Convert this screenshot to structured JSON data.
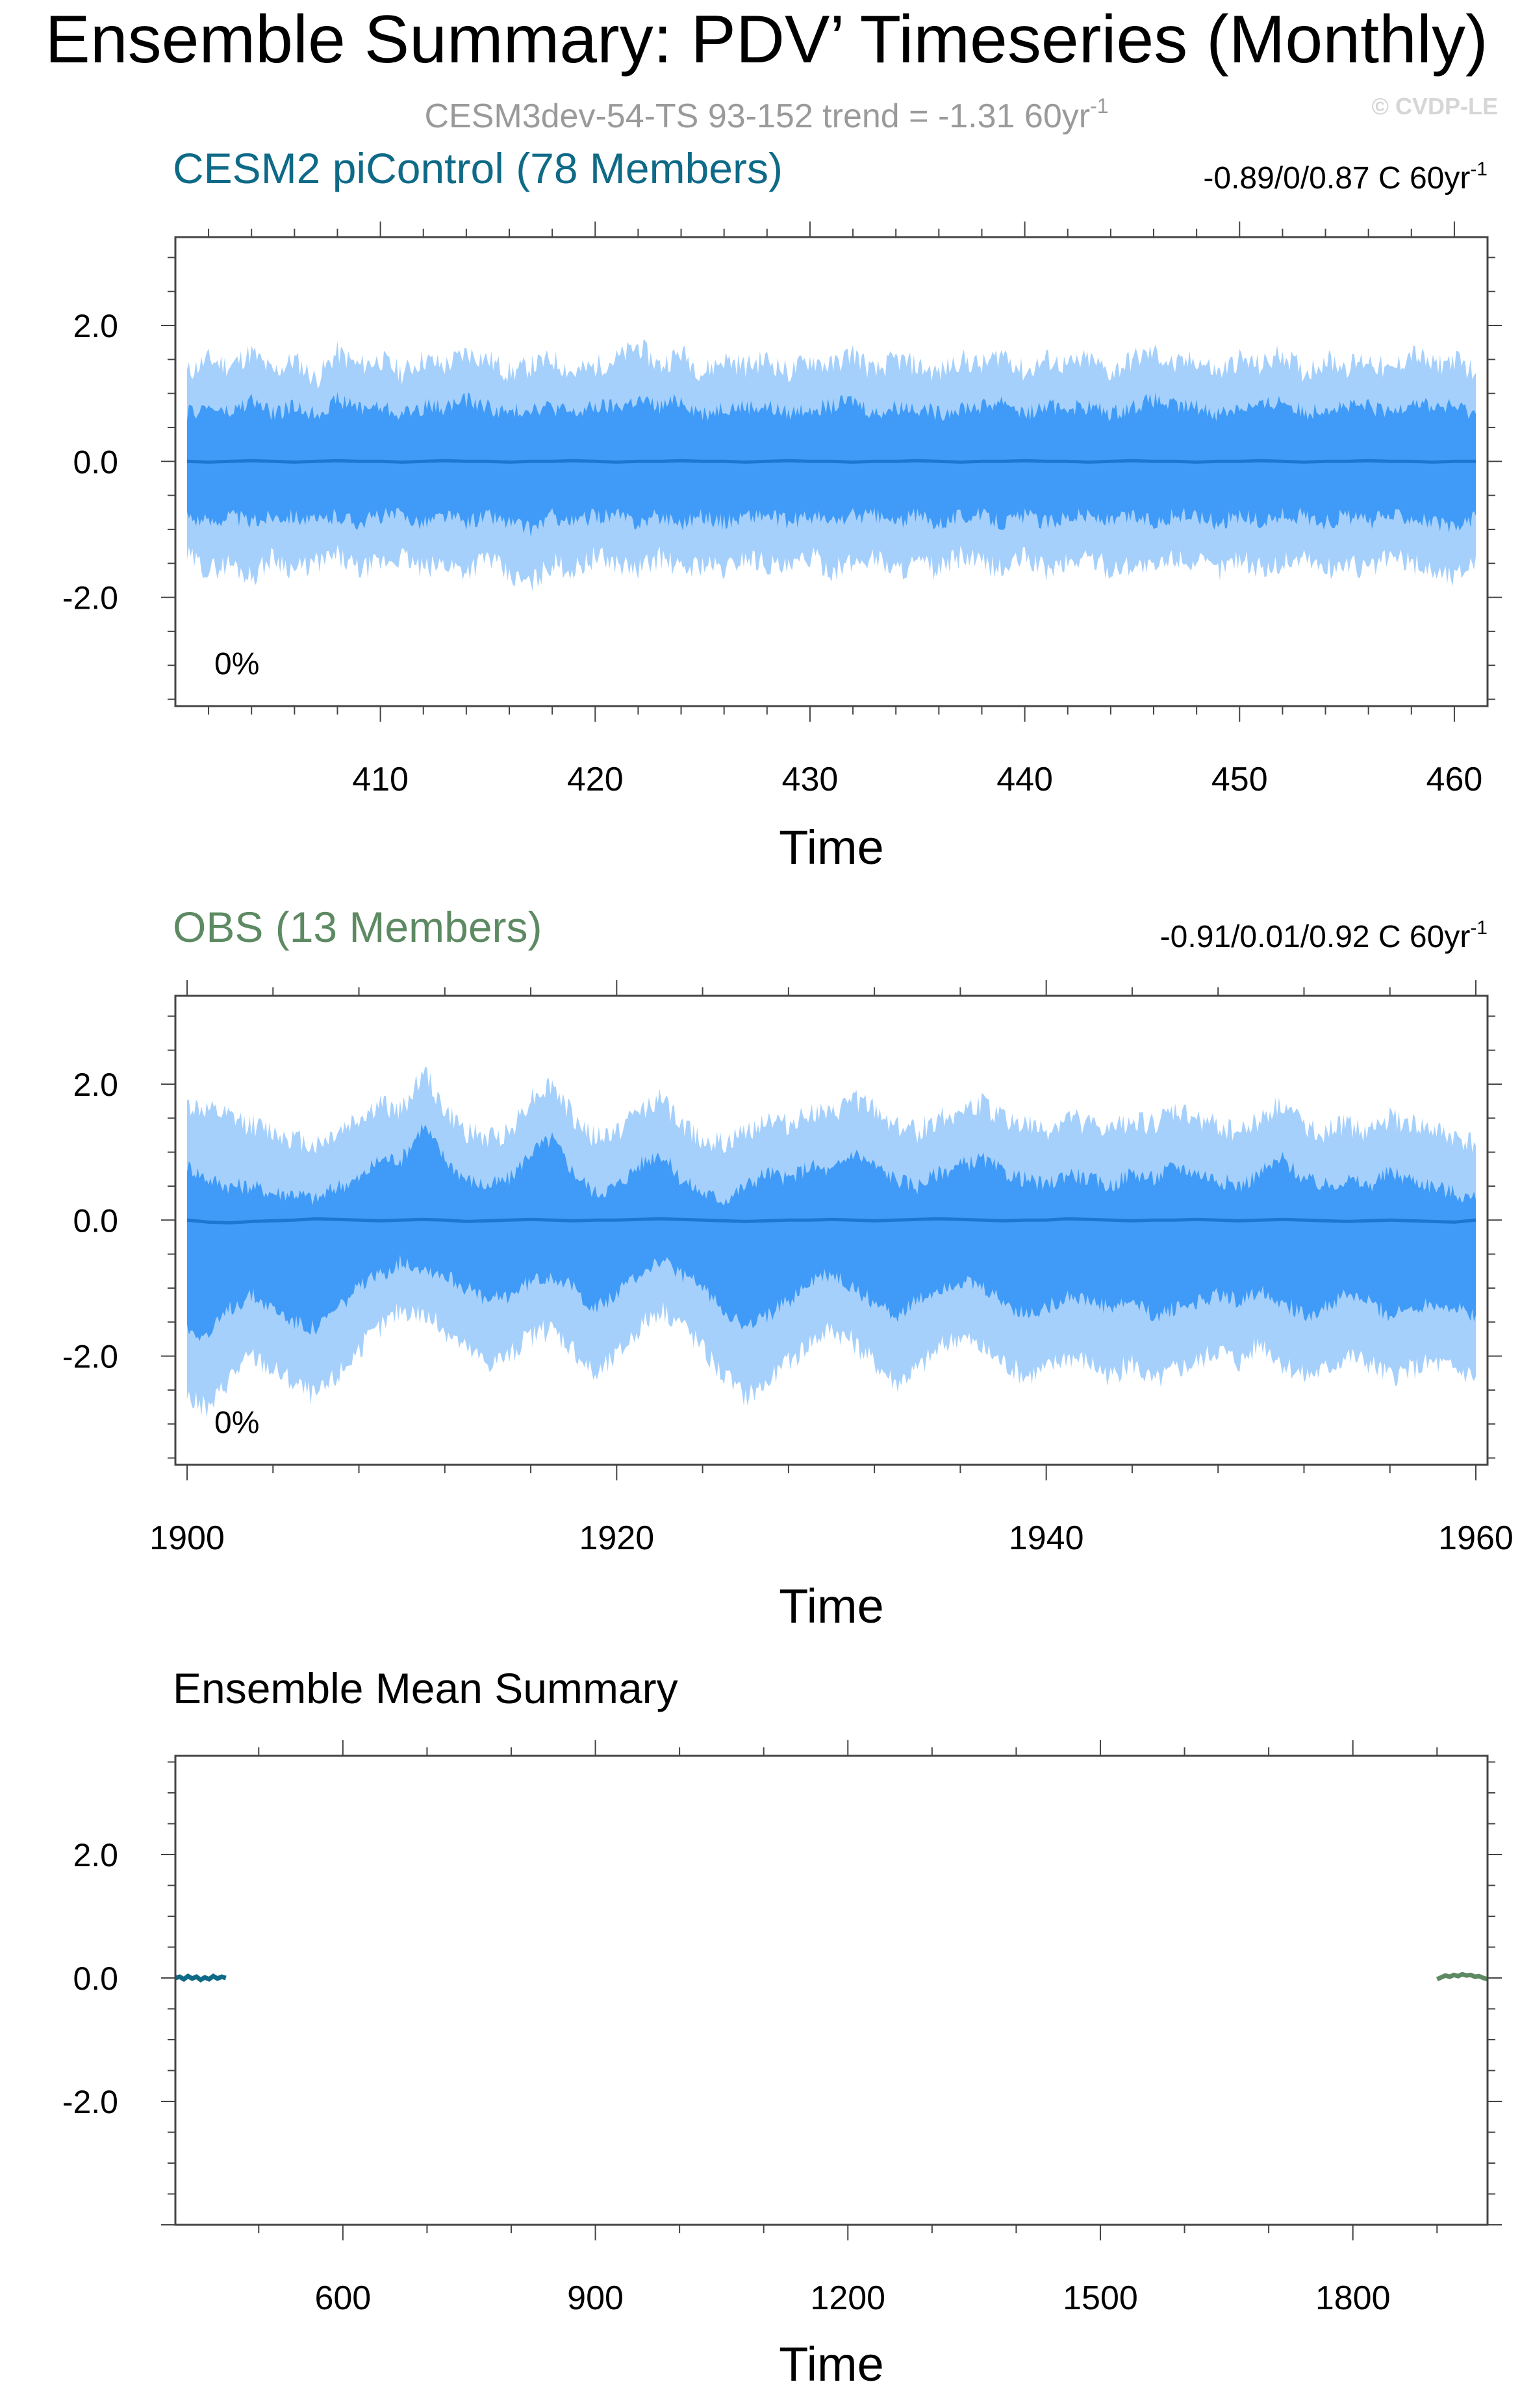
{
  "figure": {
    "title": "Ensemble Summary: PDV’ Timeseries (Monthly)",
    "subtitle": "CESM3dev-54-TS 93-152 trend = -1.31 60yr",
    "subtitle_sup": "-1",
    "watermark": "© CVDP-LE"
  },
  "colors": {
    "band_outer": "#a6d0fc",
    "band_inner": "#3f9bf7",
    "mean_line": "#1a78d2",
    "title_picontrol": "#0e6a87",
    "title_obs": "#5d8a62",
    "subtitle": "#9a9a9a",
    "watermark": "#d6d6d6"
  },
  "chart_data": [
    {
      "type": "area",
      "title": "CESM2 piControl (78 Members)",
      "stats": "-0.89/0/0.87 C 60yr",
      "stats_sup": "-1",
      "percent_label": "0%",
      "xlabel": "Time",
      "ylabel": "",
      "xlim": [
        401,
        461
      ],
      "ylim": [
        -3.6,
        3.3
      ],
      "xticks": [
        410,
        420,
        430,
        440,
        450,
        460
      ],
      "xtick_labels": [
        "410",
        "420",
        "430",
        "440",
        "450",
        "460"
      ],
      "yticks": [
        2.0,
        0.0,
        -2.0
      ],
      "ytick_labels": [
        "2.0",
        "0.0",
        "-2.0"
      ],
      "series": {
        "x": [
          401,
          402,
          403,
          404,
          405,
          406,
          407,
          408,
          409,
          410,
          411,
          412,
          413,
          414,
          415,
          416,
          417,
          418,
          419,
          420,
          421,
          422,
          423,
          424,
          425,
          426,
          427,
          428,
          429,
          430,
          431,
          432,
          433,
          434,
          435,
          436,
          437,
          438,
          439,
          440,
          441,
          442,
          443,
          444,
          445,
          446,
          447,
          448,
          449,
          450,
          451,
          452,
          453,
          454,
          455,
          456,
          457,
          458,
          459,
          460,
          461
        ],
        "outer_upper": [
          1.3,
          1.5,
          1.4,
          1.6,
          1.3,
          1.5,
          1.2,
          1.6,
          1.4,
          1.5,
          1.3,
          1.5,
          1.4,
          1.6,
          1.5,
          1.3,
          1.4,
          1.5,
          1.3,
          1.4,
          1.5,
          1.7,
          1.4,
          1.6,
          1.3,
          1.5,
          1.4,
          1.5,
          1.3,
          1.5,
          1.4,
          1.6,
          1.3,
          1.5,
          1.4,
          1.3,
          1.5,
          1.4,
          1.6,
          1.3,
          1.5,
          1.4,
          1.5,
          1.3,
          1.5,
          1.6,
          1.4,
          1.5,
          1.3,
          1.5,
          1.4,
          1.6,
          1.3,
          1.5,
          1.4,
          1.5,
          1.3,
          1.6,
          1.4,
          1.5,
          1.3
        ],
        "inner_upper": [
          0.7,
          0.8,
          0.7,
          0.9,
          0.7,
          0.8,
          0.7,
          0.9,
          0.8,
          0.8,
          0.7,
          0.8,
          0.8,
          0.9,
          0.8,
          0.7,
          0.8,
          0.8,
          0.7,
          0.8,
          0.8,
          0.9,
          0.8,
          0.9,
          0.7,
          0.8,
          0.8,
          0.8,
          0.7,
          0.8,
          0.8,
          0.9,
          0.7,
          0.8,
          0.8,
          0.7,
          0.8,
          0.8,
          0.9,
          0.7,
          0.8,
          0.8,
          0.8,
          0.7,
          0.8,
          0.9,
          0.8,
          0.8,
          0.7,
          0.8,
          0.8,
          0.9,
          0.7,
          0.8,
          0.8,
          0.8,
          0.7,
          0.9,
          0.8,
          0.8,
          0.7
        ],
        "mean": [
          0.0,
          -0.01,
          0.0,
          0.01,
          0.0,
          -0.01,
          0.0,
          0.01,
          0.0,
          0.0,
          -0.01,
          0.0,
          0.01,
          0.0,
          0.0,
          -0.01,
          0.0,
          0.0,
          0.01,
          0.0,
          -0.01,
          0.0,
          0.0,
          0.01,
          0.0,
          0.0,
          -0.01,
          0.0,
          0.01,
          0.0,
          0.0,
          -0.01,
          0.0,
          0.0,
          0.01,
          0.0,
          -0.01,
          0.0,
          0.0,
          0.01,
          0.0,
          0.0,
          -0.01,
          0.0,
          0.01,
          0.0,
          0.0,
          -0.01,
          0.0,
          0.0,
          0.01,
          0.0,
          -0.01,
          0.0,
          0.0,
          0.01,
          0.0,
          0.0,
          -0.01,
          0.0,
          0.0
        ],
        "inner_lower": [
          -0.8,
          -0.9,
          -0.8,
          -0.9,
          -0.8,
          -0.8,
          -0.9,
          -0.8,
          -0.9,
          -0.8,
          -0.8,
          -0.9,
          -0.8,
          -0.9,
          -0.8,
          -0.9,
          -1.0,
          -0.8,
          -0.9,
          -0.8,
          -0.8,
          -0.9,
          -0.8,
          -0.9,
          -0.8,
          -0.9,
          -0.8,
          -0.8,
          -0.9,
          -0.8,
          -0.9,
          -0.8,
          -0.8,
          -0.9,
          -0.8,
          -0.9,
          -0.8,
          -0.8,
          -0.9,
          -0.8,
          -0.9,
          -0.8,
          -0.8,
          -0.9,
          -0.8,
          -0.9,
          -0.8,
          -0.8,
          -0.9,
          -0.8,
          -0.9,
          -0.8,
          -0.8,
          -0.9,
          -0.8,
          -0.9,
          -0.8,
          -0.8,
          -0.9,
          -1.0,
          -0.8
        ],
        "outer_lower": [
          -1.4,
          -1.6,
          -1.5,
          -1.7,
          -1.4,
          -1.6,
          -1.5,
          -1.4,
          -1.6,
          -1.5,
          -1.4,
          -1.6,
          -1.5,
          -1.6,
          -1.4,
          -1.7,
          -1.8,
          -1.5,
          -1.6,
          -1.4,
          -1.5,
          -1.6,
          -1.4,
          -1.6,
          -1.5,
          -1.6,
          -1.4,
          -1.5,
          -1.6,
          -1.4,
          -1.6,
          -1.5,
          -1.4,
          -1.6,
          -1.5,
          -1.6,
          -1.4,
          -1.5,
          -1.6,
          -1.4,
          -1.6,
          -1.5,
          -1.4,
          -1.6,
          -1.5,
          -1.6,
          -1.4,
          -1.5,
          -1.6,
          -1.4,
          -1.6,
          -1.5,
          -1.4,
          -1.6,
          -1.5,
          -1.6,
          -1.4,
          -1.5,
          -1.6,
          -1.7,
          -1.4
        ]
      }
    },
    {
      "type": "area",
      "title": "OBS (13 Members)",
      "stats": "-0.91/0.01/0.92 C 60yr",
      "stats_sup": "-1",
      "percent_label": "0%",
      "xlabel": "Time",
      "ylabel": "",
      "xlim": [
        1900,
        1960
      ],
      "ylim": [
        -3.6,
        3.3
      ],
      "xticks": [
        1900,
        1920,
        1940,
        1960
      ],
      "xtick_labels": [
        "1900",
        "1920",
        "1940",
        "1960"
      ],
      "yticks": [
        2.0,
        0.0,
        -2.0
      ],
      "ytick_labels": [
        "2.0",
        "0.0",
        "-2.0"
      ],
      "series": {
        "x": [
          1900,
          1901,
          1902,
          1903,
          1904,
          1905,
          1906,
          1907,
          1908,
          1909,
          1910,
          1911,
          1912,
          1913,
          1914,
          1915,
          1916,
          1917,
          1918,
          1919,
          1920,
          1921,
          1922,
          1923,
          1924,
          1925,
          1926,
          1927,
          1928,
          1929,
          1930,
          1931,
          1932,
          1933,
          1934,
          1935,
          1936,
          1937,
          1938,
          1939,
          1940,
          1941,
          1942,
          1943,
          1944,
          1945,
          1946,
          1947,
          1948,
          1949,
          1950,
          1951,
          1952,
          1953,
          1954,
          1955,
          1956,
          1957,
          1958,
          1959,
          1960
        ],
        "outer_upper": [
          1.7,
          1.6,
          1.5,
          1.4,
          1.3,
          1.2,
          1.1,
          1.3,
          1.5,
          1.7,
          1.6,
          2.2,
          1.6,
          1.3,
          1.2,
          1.3,
          1.8,
          2.0,
          1.5,
          1.2,
          1.3,
          1.6,
          1.8,
          1.4,
          1.2,
          1.1,
          1.3,
          1.5,
          1.4,
          1.6,
          1.5,
          1.8,
          1.6,
          1.4,
          1.3,
          1.5,
          1.6,
          1.7,
          1.5,
          1.4,
          1.3,
          1.5,
          1.4,
          1.3,
          1.5,
          1.4,
          1.6,
          1.5,
          1.4,
          1.3,
          1.5,
          1.7,
          1.4,
          1.3,
          1.4,
          1.3,
          1.5,
          1.4,
          1.3,
          1.2,
          1.1
        ],
        "inner_upper": [
          0.8,
          0.6,
          0.5,
          0.5,
          0.4,
          0.4,
          0.3,
          0.5,
          0.6,
          0.9,
          0.9,
          1.4,
          0.9,
          0.6,
          0.5,
          0.6,
          1.0,
          1.2,
          0.7,
          0.4,
          0.5,
          0.8,
          1.0,
          0.6,
          0.4,
          0.3,
          0.5,
          0.7,
          0.6,
          0.8,
          0.7,
          1.0,
          0.8,
          0.6,
          0.5,
          0.7,
          0.8,
          0.9,
          0.7,
          0.6,
          0.5,
          0.7,
          0.6,
          0.5,
          0.7,
          0.6,
          0.8,
          0.7,
          0.6,
          0.5,
          0.7,
          0.9,
          0.6,
          0.5,
          0.6,
          0.5,
          0.7,
          0.6,
          0.5,
          0.4,
          0.3
        ],
        "mean": [
          0.0,
          -0.03,
          -0.04,
          -0.02,
          -0.01,
          0.0,
          0.02,
          0.01,
          0.0,
          -0.01,
          0.0,
          0.01,
          0.0,
          -0.02,
          -0.01,
          0.0,
          0.01,
          0.0,
          -0.01,
          0.0,
          0.0,
          0.01,
          0.02,
          0.01,
          0.0,
          -0.01,
          -0.02,
          -0.01,
          0.0,
          0.0,
          0.01,
          0.0,
          -0.01,
          0.0,
          0.01,
          0.02,
          0.01,
          0.0,
          -0.01,
          0.0,
          0.0,
          0.02,
          0.01,
          0.0,
          -0.01,
          0.0,
          0.0,
          0.01,
          0.0,
          -0.01,
          0.0,
          0.01,
          0.0,
          -0.01,
          -0.02,
          -0.01,
          0.0,
          -0.01,
          -0.02,
          -0.03,
          0.0
        ],
        "inner_lower": [
          -1.6,
          -1.7,
          -1.3,
          -1.1,
          -1.3,
          -1.5,
          -1.6,
          -1.3,
          -1.0,
          -0.8,
          -0.6,
          -0.7,
          -0.8,
          -1.0,
          -1.2,
          -1.1,
          -0.9,
          -0.8,
          -1.0,
          -1.3,
          -1.1,
          -0.8,
          -0.6,
          -0.8,
          -1.0,
          -1.3,
          -1.6,
          -1.4,
          -1.2,
          -0.9,
          -0.8,
          -1.0,
          -1.2,
          -1.4,
          -1.2,
          -1.0,
          -0.9,
          -1.0,
          -1.2,
          -1.4,
          -1.3,
          -1.1,
          -1.2,
          -1.3,
          -1.2,
          -1.4,
          -1.3,
          -1.2,
          -1.1,
          -1.2,
          -1.0,
          -1.2,
          -1.4,
          -1.3,
          -1.1,
          -1.2,
          -1.4,
          -1.3,
          -1.2,
          -1.3,
          -1.4
        ],
        "outer_lower": [
          -2.6,
          -2.8,
          -2.3,
          -2.0,
          -2.2,
          -2.4,
          -2.6,
          -2.3,
          -1.9,
          -1.6,
          -1.3,
          -1.4,
          -1.6,
          -1.9,
          -2.1,
          -2.0,
          -1.7,
          -1.6,
          -1.9,
          -2.3,
          -2.0,
          -1.6,
          -1.3,
          -1.5,
          -1.9,
          -2.3,
          -2.6,
          -2.4,
          -2.1,
          -1.8,
          -1.6,
          -1.8,
          -2.1,
          -2.4,
          -2.2,
          -1.9,
          -1.7,
          -1.9,
          -2.1,
          -2.3,
          -2.2,
          -2.0,
          -2.1,
          -2.3,
          -2.1,
          -2.4,
          -2.2,
          -2.1,
          -1.9,
          -2.1,
          -1.8,
          -2.1,
          -2.3,
          -2.2,
          -2.0,
          -2.1,
          -2.3,
          -2.2,
          -2.1,
          -2.2,
          -2.3
        ]
      }
    },
    {
      "type": "line",
      "title": "Ensemble Mean Summary",
      "xlabel": "Time",
      "ylabel": "",
      "xlim": [
        401,
        1960
      ],
      "ylim": [
        -4.0,
        3.6
      ],
      "xticks": [
        600,
        900,
        1200,
        1500,
        1800
      ],
      "xtick_labels": [
        "600",
        "900",
        "1200",
        "1500",
        "1800"
      ],
      "yticks": [
        2.0,
        0.0,
        -2.0
      ],
      "ytick_labels": [
        "2.0",
        "0.0",
        "-2.0"
      ],
      "series": [
        {
          "x": [
            401,
            406,
            411,
            416,
            421,
            426,
            431,
            436,
            441,
            446,
            451,
            456,
            461
          ],
          "values": [
            0.0,
            0.02,
            -0.02,
            0.03,
            -0.01,
            0.02,
            -0.03,
            0.01,
            -0.02,
            0.03,
            -0.01,
            0.02,
            0.0
          ]
        },
        {
          "x": [
            1900,
            1905,
            1910,
            1915,
            1920,
            1925,
            1930,
            1935,
            1940,
            1945,
            1950,
            1955,
            1960
          ],
          "values": [
            -0.02,
            0.01,
            0.04,
            0.02,
            0.05,
            0.03,
            0.06,
            0.04,
            0.05,
            0.02,
            0.03,
            0.0,
            -0.02
          ]
        }
      ],
      "line_colors": [
        "#0e6a87",
        "#5d8a62"
      ]
    }
  ]
}
